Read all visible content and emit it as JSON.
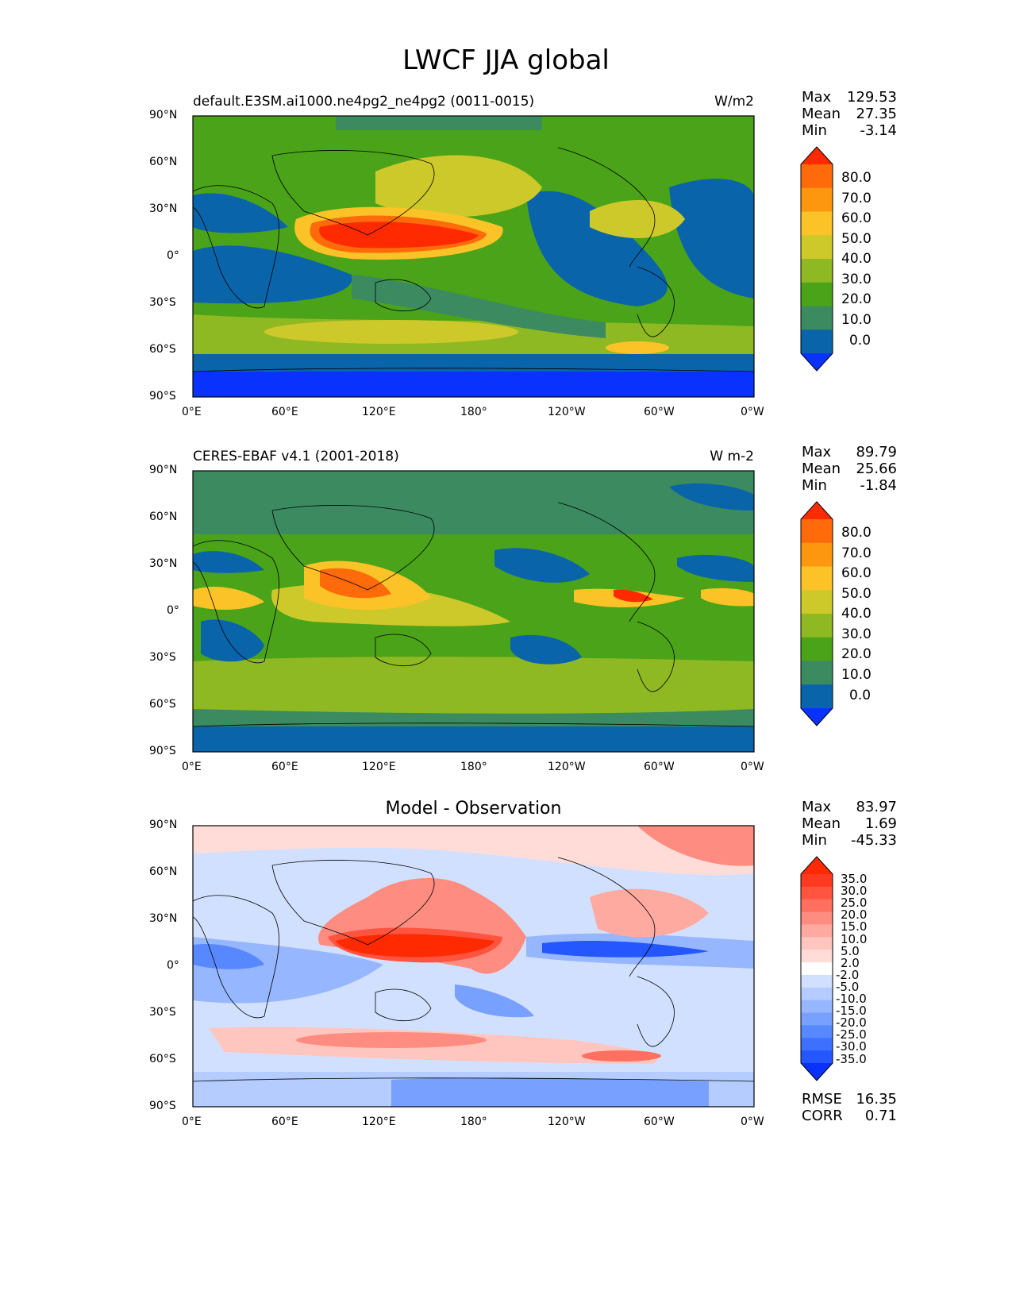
{
  "title": "LWCF JJA global",
  "tick_labels": {
    "lat": [
      "90°N",
      "60°N",
      "30°N",
      "0°",
      "30°S",
      "60°S",
      "90°S"
    ],
    "lon": [
      "0°E",
      "60°E",
      "120°E",
      "180°",
      "120°W",
      "60°W",
      "0°W"
    ]
  },
  "panels": [
    {
      "id": "model",
      "left_title": "default.E3SM.ai1000.ne4pg2_ne4pg2 (0011-0015)",
      "right_title": "W/m2",
      "center_title": "",
      "stats": [
        {
          "label": "Max",
          "value": "129.53"
        },
        {
          "label": "Mean",
          "value": "27.35"
        },
        {
          "label": "Min",
          "value": "-3.14"
        }
      ],
      "colorbar_labels": [
        "80.0",
        "70.0",
        "60.0",
        "50.0",
        "40.0",
        "30.0",
        "20.0",
        "10.0",
        "0.0"
      ]
    },
    {
      "id": "observation",
      "left_title": "CERES-EBAF v4.1 (2001-2018)",
      "right_title": "W m-2",
      "center_title": "",
      "stats": [
        {
          "label": "Max",
          "value": "89.79"
        },
        {
          "label": "Mean",
          "value": "25.66"
        },
        {
          "label": "Min",
          "value": "-1.84"
        }
      ],
      "colorbar_labels": [
        "80.0",
        "70.0",
        "60.0",
        "50.0",
        "40.0",
        "30.0",
        "20.0",
        "10.0",
        "0.0"
      ]
    },
    {
      "id": "difference",
      "left_title": "",
      "right_title": "",
      "center_title": "Model - Observation",
      "stats": [
        {
          "label": "Max",
          "value": "83.97"
        },
        {
          "label": "Mean",
          "value": "1.69"
        },
        {
          "label": "Min",
          "value": "-45.33"
        }
      ],
      "extra_stats": [
        {
          "label": "RMSE",
          "value": "16.35"
        },
        {
          "label": "CORR",
          "value": "0.71"
        }
      ],
      "colorbar_labels": [
        "35.0",
        "30.0",
        "25.0",
        "20.0",
        "15.0",
        "10.0",
        "5.0",
        "2.0",
        "-2.0",
        "-5.0",
        "-10.0",
        "-15.0",
        "-20.0",
        "-25.0",
        "-30.0",
        "-35.0"
      ]
    }
  ],
  "colors": {
    "seq": [
      "#0a32ff",
      "#0a64aa",
      "#3b8a60",
      "#4aa318",
      "#8fb923",
      "#cdc92a",
      "#fbc327",
      "#fe9710",
      "#ff6a0a",
      "#ff2a00"
    ],
    "div": [
      "#0a32ff",
      "#2457ff",
      "#3e70ff",
      "#5888ff",
      "#78a0ff",
      "#96b6ff",
      "#b4ccff",
      "#d2e0ff",
      "#ffffff",
      "#ffdcd8",
      "#ffc6c0",
      "#ffaaa0",
      "#ff8c80",
      "#ff7060",
      "#ff5440",
      "#ff3a20",
      "#ff2a00"
    ]
  }
}
